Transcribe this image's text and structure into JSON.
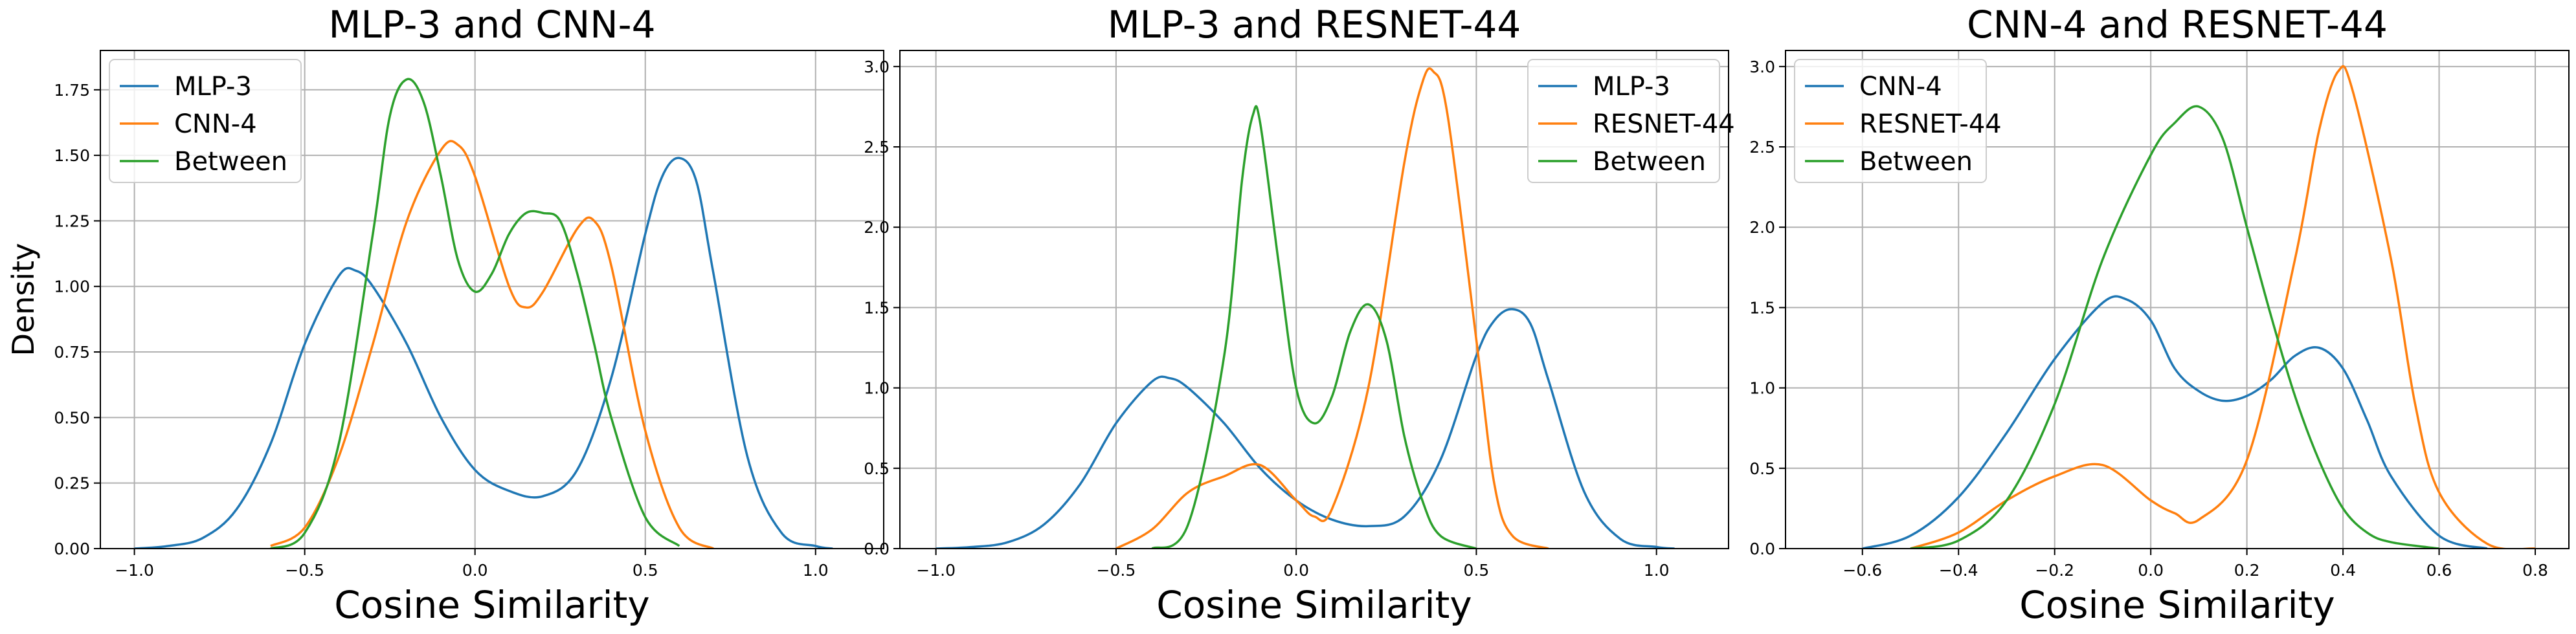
{
  "colors": {
    "blue": "#1f77b4",
    "orange": "#ff7f0e",
    "green": "#2ca02c"
  },
  "chart_data": [
    {
      "type": "line",
      "title": "MLP-3 and CNN-4",
      "xlabel": "Cosine Similarity",
      "ylabel": "Density",
      "xlim": [
        -1.1,
        1.2
      ],
      "ylim": [
        0,
        1.9
      ],
      "xticks": [
        -1.0,
        -0.5,
        0.0,
        0.5,
        1.0
      ],
      "xtick_labels": [
        "−1.0",
        "−0.5",
        "0.0",
        "0.5",
        "1.0"
      ],
      "yticks": [
        0,
        0.25,
        0.5,
        0.75,
        1.0,
        1.25,
        1.5,
        1.75
      ],
      "ytick_labels": [
        "0.00",
        "0.25",
        "0.50",
        "0.75",
        "1.00",
        "1.25",
        "1.50",
        "1.75"
      ],
      "grid": true,
      "legend_position": "upper-left",
      "series": [
        {
          "name": "MLP-3",
          "color": "#1f77b4",
          "x": [
            -1.0,
            -0.9,
            -0.8,
            -0.7,
            -0.6,
            -0.5,
            -0.4,
            -0.35,
            -0.3,
            -0.2,
            -0.1,
            0.0,
            0.1,
            0.2,
            0.3,
            0.4,
            0.5,
            0.55,
            0.6,
            0.65,
            0.7,
            0.8,
            0.9,
            1.0,
            1.05
          ],
          "y": [
            0.0,
            0.01,
            0.04,
            0.15,
            0.4,
            0.78,
            1.04,
            1.06,
            1.0,
            0.78,
            0.5,
            0.3,
            0.22,
            0.2,
            0.3,
            0.65,
            1.2,
            1.42,
            1.49,
            1.4,
            1.05,
            0.35,
            0.06,
            0.01,
            0.0
          ]
        },
        {
          "name": "CNN-4",
          "color": "#ff7f0e",
          "x": [
            -0.6,
            -0.5,
            -0.4,
            -0.3,
            -0.2,
            -0.1,
            -0.05,
            0.0,
            0.1,
            0.15,
            0.2,
            0.3,
            0.35,
            0.4,
            0.5,
            0.6,
            0.7
          ],
          "y": [
            0.01,
            0.08,
            0.35,
            0.78,
            1.25,
            1.52,
            1.54,
            1.42,
            1.0,
            0.92,
            0.98,
            1.22,
            1.25,
            1.08,
            0.45,
            0.08,
            0.0
          ]
        },
        {
          "name": "Between",
          "color": "#2ca02c",
          "x": [
            -0.6,
            -0.5,
            -0.4,
            -0.3,
            -0.25,
            -0.2,
            -0.15,
            -0.1,
            -0.05,
            0.0,
            0.05,
            0.1,
            0.15,
            0.2,
            0.25,
            0.3,
            0.35,
            0.4,
            0.5,
            0.6
          ],
          "y": [
            0.0,
            0.06,
            0.4,
            1.2,
            1.65,
            1.79,
            1.7,
            1.42,
            1.1,
            0.98,
            1.05,
            1.2,
            1.28,
            1.28,
            1.25,
            1.05,
            0.78,
            0.5,
            0.12,
            0.01
          ]
        }
      ]
    },
    {
      "type": "line",
      "title": "MLP-3 and RESNET-44",
      "xlabel": "Cosine Similarity",
      "ylabel": "",
      "xlim": [
        -1.1,
        1.2
      ],
      "ylim": [
        0,
        3.1
      ],
      "xticks": [
        -1.0,
        -0.5,
        0.0,
        0.5,
        1.0
      ],
      "xtick_labels": [
        "−1.0",
        "−0.5",
        "0.0",
        "0.5",
        "1.0"
      ],
      "yticks": [
        0,
        0.5,
        1.0,
        1.5,
        2.0,
        2.5,
        3.0
      ],
      "ytick_labels": [
        "0.0",
        "0.5",
        "1.0",
        "1.5",
        "2.0",
        "2.5",
        "3.0"
      ],
      "grid": true,
      "legend_position": "upper-right",
      "series": [
        {
          "name": "MLP-3",
          "color": "#1f77b4",
          "x": [
            -1.0,
            -0.9,
            -0.8,
            -0.7,
            -0.6,
            -0.5,
            -0.4,
            -0.35,
            -0.3,
            -0.2,
            -0.1,
            0.0,
            0.1,
            0.2,
            0.3,
            0.4,
            0.5,
            0.55,
            0.6,
            0.65,
            0.7,
            0.8,
            0.9,
            1.0,
            1.05
          ],
          "y": [
            0.0,
            0.01,
            0.04,
            0.15,
            0.4,
            0.78,
            1.04,
            1.06,
            1.0,
            0.78,
            0.5,
            0.3,
            0.18,
            0.14,
            0.2,
            0.55,
            1.2,
            1.42,
            1.49,
            1.4,
            1.05,
            0.35,
            0.06,
            0.01,
            0.0
          ]
        },
        {
          "name": "RESNET-44",
          "color": "#ff7f0e",
          "x": [
            -0.5,
            -0.4,
            -0.3,
            -0.2,
            -0.1,
            0.0,
            0.05,
            0.1,
            0.2,
            0.3,
            0.35,
            0.38,
            0.42,
            0.5,
            0.55,
            0.6,
            0.7
          ],
          "y": [
            0.0,
            0.12,
            0.35,
            0.45,
            0.52,
            0.3,
            0.2,
            0.25,
            1.0,
            2.4,
            2.9,
            2.97,
            2.7,
            1.3,
            0.4,
            0.08,
            0.0
          ]
        },
        {
          "name": "Between",
          "color": "#2ca02c",
          "x": [
            -0.4,
            -0.3,
            -0.2,
            -0.15,
            -0.12,
            -0.1,
            -0.05,
            0.0,
            0.05,
            0.1,
            0.15,
            0.2,
            0.25,
            0.3,
            0.35,
            0.4,
            0.5
          ],
          "y": [
            0.0,
            0.15,
            1.2,
            2.3,
            2.7,
            2.65,
            1.8,
            1.0,
            0.78,
            0.95,
            1.35,
            1.52,
            1.3,
            0.7,
            0.3,
            0.08,
            0.0
          ]
        }
      ]
    },
    {
      "type": "line",
      "title": "CNN-4 and RESNET-44",
      "xlabel": "Cosine Similarity",
      "ylabel": "",
      "xlim": [
        -0.76,
        0.87
      ],
      "ylim": [
        0,
        3.1
      ],
      "xticks": [
        -0.6,
        -0.4,
        -0.2,
        0.0,
        0.2,
        0.4,
        0.6,
        0.8
      ],
      "xtick_labels": [
        "−0.6",
        "−0.4",
        "−0.2",
        "0.0",
        "0.2",
        "0.4",
        "0.6",
        "0.8"
      ],
      "yticks": [
        0,
        0.5,
        1.0,
        1.5,
        2.0,
        2.5,
        3.0
      ],
      "ytick_labels": [
        "0.0",
        "0.5",
        "1.0",
        "1.5",
        "2.0",
        "2.5",
        "3.0"
      ],
      "grid": true,
      "legend_position": "upper-left",
      "series": [
        {
          "name": "CNN-4",
          "color": "#1f77b4",
          "x": [
            -0.6,
            -0.5,
            -0.4,
            -0.3,
            -0.2,
            -0.1,
            -0.05,
            0.0,
            0.05,
            0.1,
            0.15,
            0.2,
            0.25,
            0.3,
            0.35,
            0.4,
            0.45,
            0.5,
            0.6,
            0.7
          ],
          "y": [
            0.0,
            0.08,
            0.32,
            0.72,
            1.18,
            1.53,
            1.55,
            1.42,
            1.12,
            0.98,
            0.92,
            0.95,
            1.05,
            1.2,
            1.25,
            1.12,
            0.8,
            0.45,
            0.08,
            0.0
          ]
        },
        {
          "name": "RESNET-44",
          "color": "#ff7f0e",
          "x": [
            -0.5,
            -0.4,
            -0.3,
            -0.2,
            -0.1,
            0.0,
            0.05,
            0.1,
            0.2,
            0.3,
            0.35,
            0.39,
            0.42,
            0.5,
            0.55,
            0.6,
            0.7,
            0.8
          ],
          "y": [
            0.0,
            0.1,
            0.3,
            0.45,
            0.52,
            0.3,
            0.22,
            0.18,
            0.55,
            1.8,
            2.6,
            2.97,
            2.85,
            1.8,
            0.9,
            0.35,
            0.03,
            0.0
          ]
        },
        {
          "name": "Between",
          "color": "#2ca02c",
          "x": [
            -0.5,
            -0.4,
            -0.3,
            -0.2,
            -0.1,
            0.0,
            0.05,
            0.1,
            0.15,
            0.2,
            0.25,
            0.3,
            0.35,
            0.4,
            0.45,
            0.5,
            0.6
          ],
          "y": [
            0.0,
            0.05,
            0.3,
            0.9,
            1.8,
            2.45,
            2.65,
            2.75,
            2.55,
            2.0,
            1.45,
            0.95,
            0.55,
            0.25,
            0.1,
            0.04,
            0.0
          ]
        }
      ]
    }
  ]
}
